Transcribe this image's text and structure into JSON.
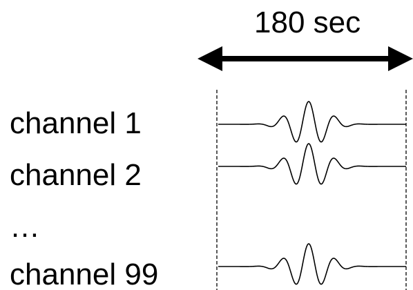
{
  "duration_label": "180 sec",
  "channels": [
    {
      "label": "channel 1"
    },
    {
      "label": "channel 2"
    },
    {
      "label": "channel 99"
    }
  ],
  "ellipsis": "…",
  "colors": {
    "ink": "#000000",
    "background": "#ffffff"
  }
}
